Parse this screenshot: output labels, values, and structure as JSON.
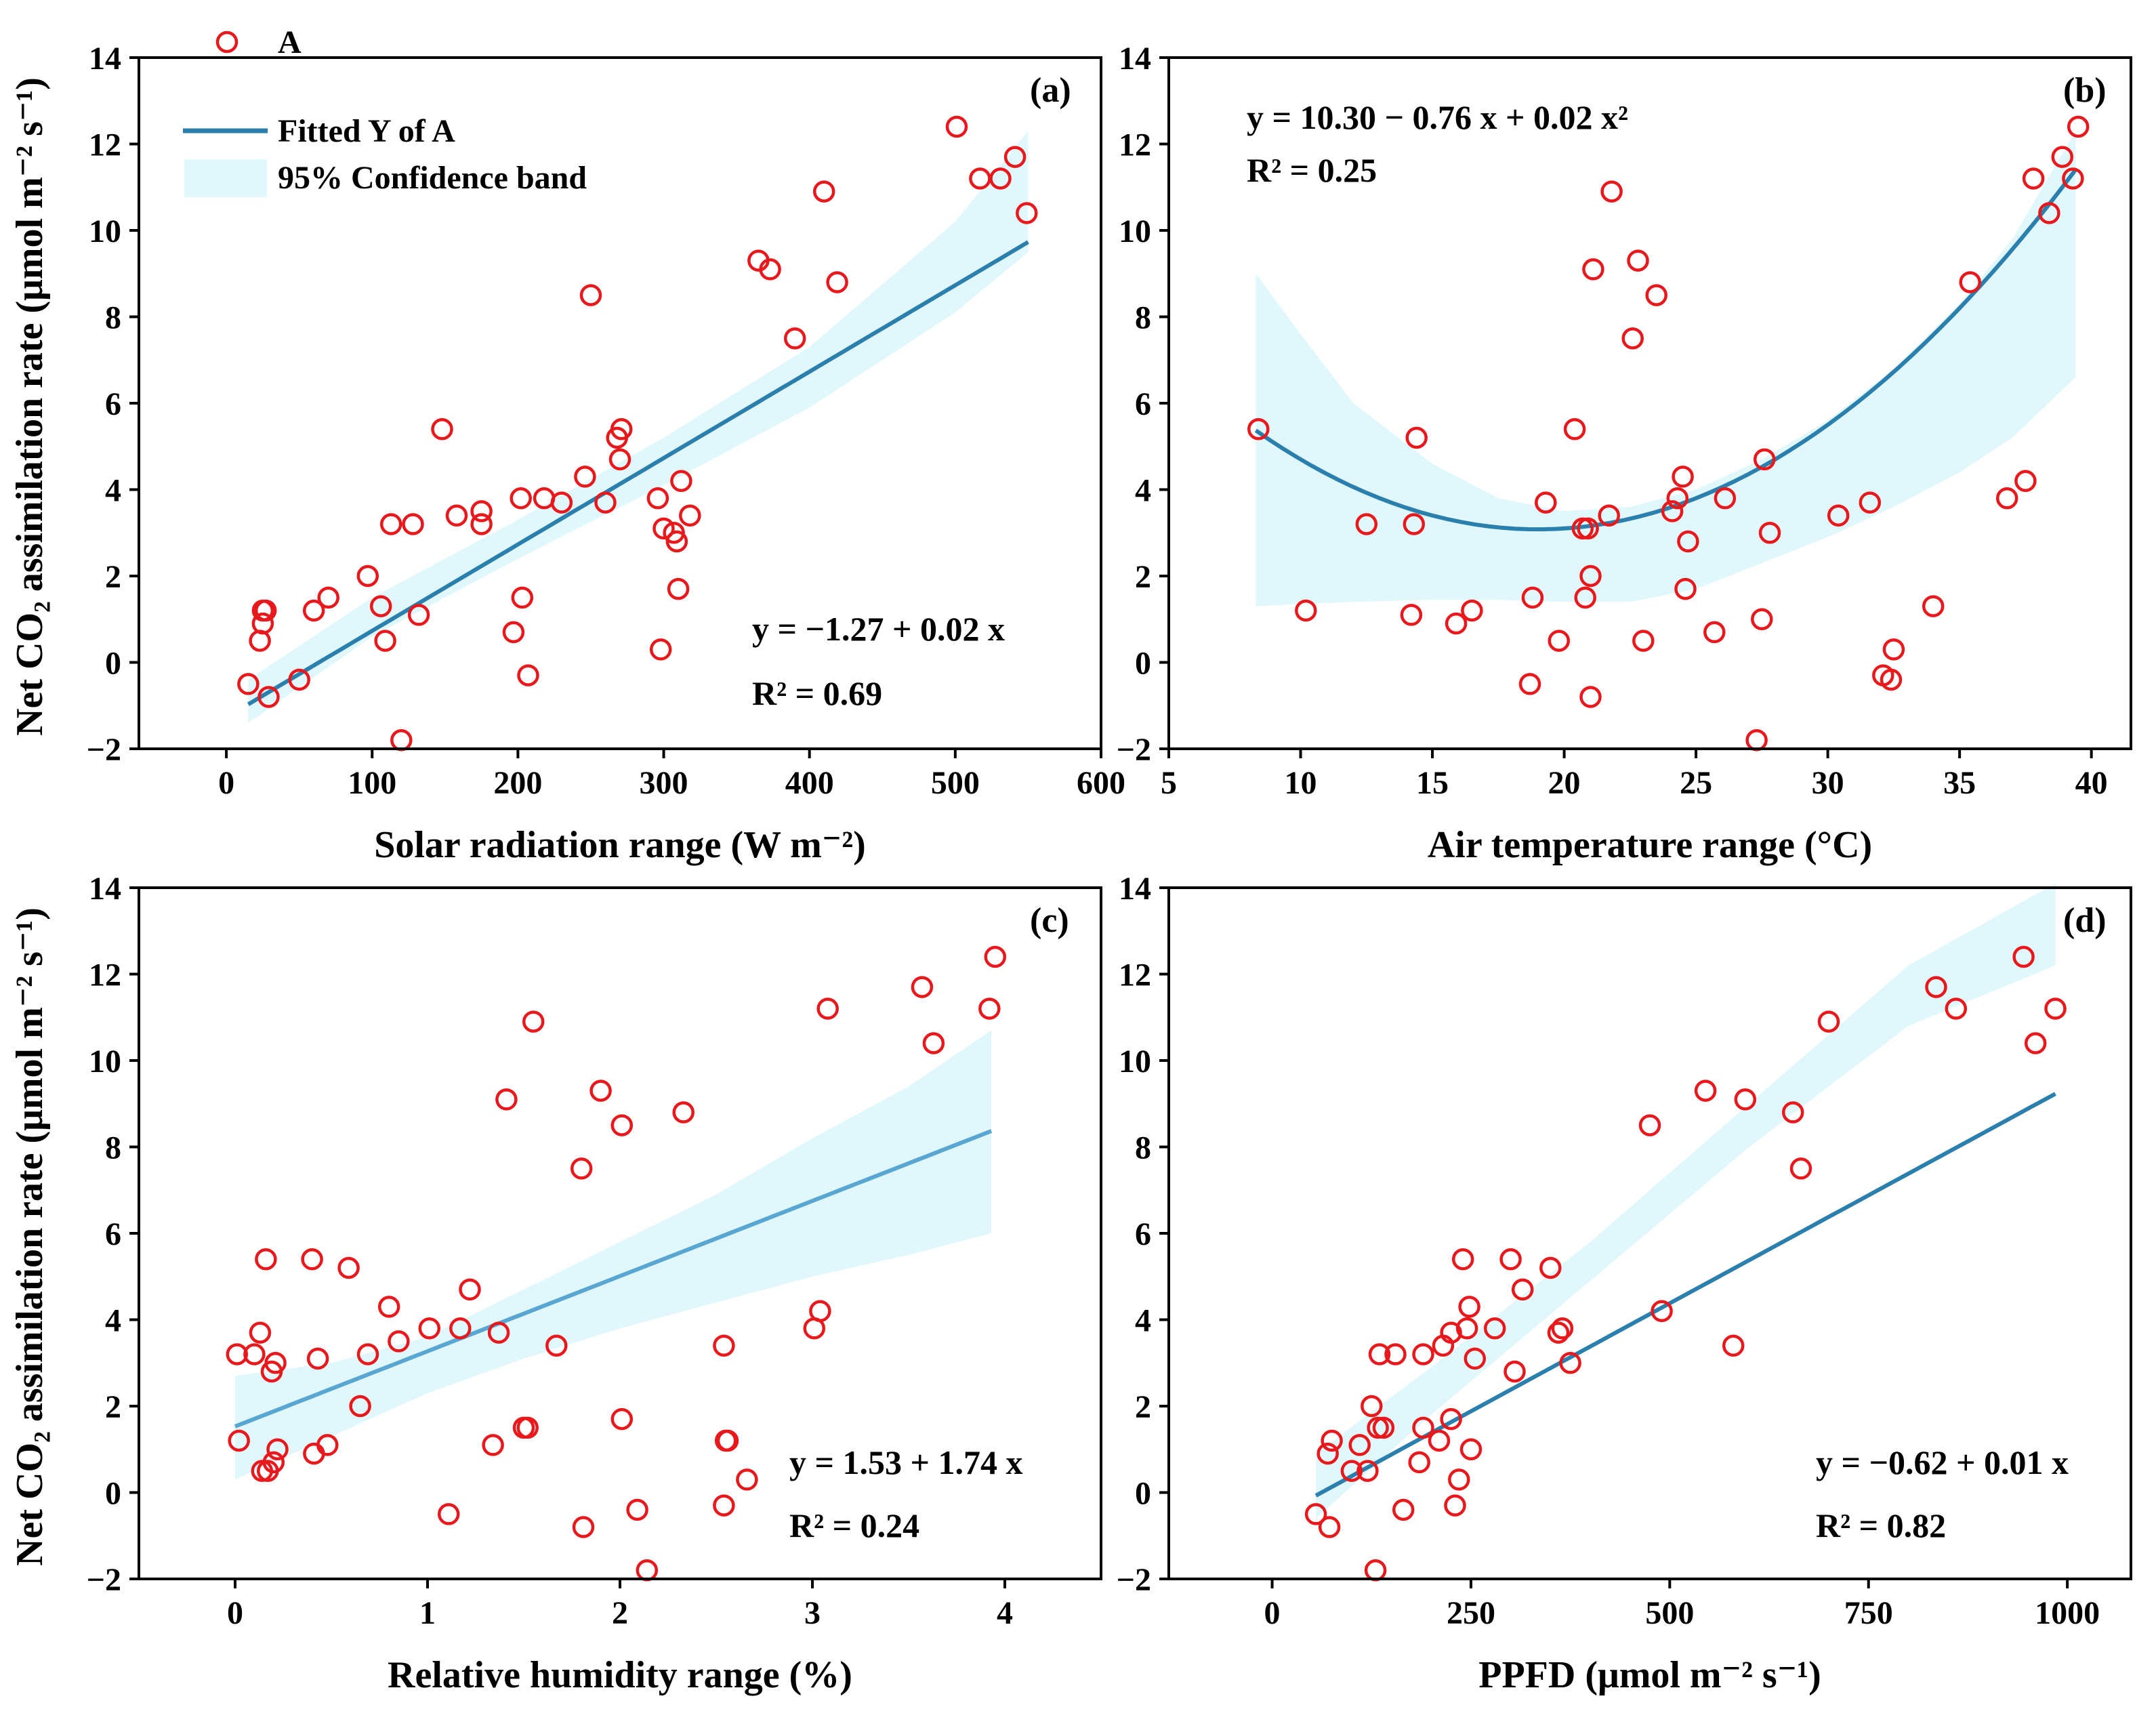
{
  "colors": {
    "points": "#e8191c",
    "fit_dark": "#2a7fad",
    "fit_light": "#58a6d1",
    "band": "#e0f7fb",
    "axis": "#000000"
  },
  "legend": {
    "points_label": "A",
    "fit_label": "Fitted Y of A",
    "band_label": "95% Confidence band"
  },
  "ylabel_main": "Net CO₂ assimilation rate (μmol m⁻² s⁻¹)",
  "chart_data": [
    {
      "type": "scatter",
      "panel": "(a)",
      "xlabel": "Solar radiation range (W m⁻²)",
      "xlim": [
        -60,
        600
      ],
      "ylim": [
        -2,
        14
      ],
      "xticks": [
        0,
        100,
        200,
        300,
        400,
        500,
        600
      ],
      "xtick_labels": [
        "0",
        "100",
        "200",
        "300",
        "400",
        "500",
        "600"
      ],
      "yticks": [
        -2,
        0,
        2,
        4,
        6,
        8,
        10,
        12,
        14
      ],
      "ytick_labels": [
        "−2",
        "0",
        "2",
        "4",
        "6",
        "8",
        "10",
        "12",
        "14"
      ],
      "fit": {
        "model": "linear",
        "coef": [
          -1.27,
          0.02
        ],
        "x_range": [
          15,
          550
        ],
        "equation": "y = −1.27 + 0.02 x",
        "r2": "R² = 0.69"
      },
      "band_x": [
        15,
        100,
        200,
        300,
        400,
        500,
        550
      ],
      "band_lower": [
        -1.4,
        0.6,
        2.4,
        4.1,
        5.9,
        8.1,
        9.5
      ],
      "band_upper": [
        -0.4,
        1.5,
        3.3,
        5.2,
        7.3,
        10.2,
        12.3
      ],
      "x": [
        15,
        23,
        25,
        25,
        27,
        29,
        50,
        60,
        70,
        97,
        106,
        109,
        113,
        128,
        132,
        148,
        158,
        175,
        175,
        197,
        202,
        203,
        207,
        218,
        230,
        246,
        250,
        260,
        268,
        270,
        271,
        296,
        298,
        300,
        307,
        309,
        310,
        312,
        318,
        365,
        373,
        390,
        410,
        419,
        501,
        517,
        531,
        541,
        549,
        120
      ],
      "y": [
        -0.5,
        0.5,
        0.9,
        1.2,
        1.2,
        -0.8,
        -0.4,
        1.2,
        1.5,
        2.0,
        1.3,
        0.5,
        3.2,
        3.2,
        1.1,
        5.4,
        3.4,
        3.5,
        3.2,
        0.7,
        3.8,
        1.5,
        -0.3,
        3.8,
        3.7,
        4.3,
        8.5,
        3.7,
        5.2,
        4.7,
        5.4,
        3.8,
        0.3,
        3.1,
        3.0,
        2.8,
        1.7,
        4.2,
        3.4,
        9.3,
        9.1,
        7.5,
        10.9,
        8.8,
        12.4,
        11.2,
        11.2,
        11.7,
        10.4,
        -1.8
      ]
    },
    {
      "type": "scatter",
      "panel": "(b)",
      "xlabel": "Air temperature range (°C)",
      "xlim": [
        5,
        41.5
      ],
      "ylim": [
        -2,
        14
      ],
      "xticks": [
        5,
        10,
        15,
        20,
        25,
        30,
        35,
        40
      ],
      "xtick_labels": [
        "5",
        "10",
        "15",
        "20",
        "25",
        "30",
        "35",
        "40"
      ],
      "yticks": [
        -2,
        0,
        2,
        4,
        6,
        8,
        10,
        12,
        14
      ],
      "ytick_labels": [
        "−2",
        "0",
        "2",
        "4",
        "6",
        "8",
        "10",
        "12",
        "14"
      ],
      "fit": {
        "model": "quadratic",
        "coef": [
          10.3,
          -0.76,
          0.02
        ],
        "x_range": [
          8.3,
          39.4
        ],
        "equation": "y = 10.30 − 0.76 x + 0.02 x²",
        "r2": "R² = 0.25"
      },
      "band_x": [
        8.3,
        10,
        12,
        15,
        17.5,
        20,
        22.5,
        25,
        27.5,
        30,
        32.5,
        35,
        37,
        39.4
      ],
      "band_lower": [
        1.3,
        1.35,
        1.4,
        1.45,
        1.45,
        1.4,
        1.4,
        1.7,
        2.3,
        2.9,
        3.6,
        4.4,
        5.2,
        6.6
      ],
      "band_upper": [
        9.0,
        7.6,
        6.0,
        4.6,
        3.8,
        3.5,
        3.6,
        4.0,
        4.7,
        5.6,
        6.8,
        8.3,
        9.8,
        12.3
      ],
      "x": [
        8.4,
        10.2,
        12.5,
        14.2,
        14.3,
        14.4,
        15.9,
        16.5,
        18.7,
        18.8,
        19.3,
        19.8,
        20.4,
        20.7,
        20.8,
        20.9,
        21.0,
        21.0,
        21.1,
        21.7,
        21.8,
        22.6,
        22.8,
        23.0,
        23.5,
        24.1,
        24.3,
        24.5,
        24.6,
        24.7,
        25.7,
        26.1,
        27.3,
        27.5,
        27.6,
        27.8,
        30.4,
        31.6,
        32.1,
        32.4,
        32.5,
        34.0,
        35.4,
        36.8,
        37.5,
        37.8,
        38.4,
        38.9,
        39.3,
        39.5
      ],
      "y": [
        5.4,
        1.2,
        3.2,
        1.1,
        3.2,
        5.2,
        0.9,
        1.2,
        -0.5,
        1.5,
        3.7,
        0.5,
        5.4,
        3.1,
        1.5,
        3.1,
        2.0,
        -0.8,
        9.1,
        3.4,
        10.9,
        7.5,
        9.3,
        0.5,
        8.5,
        3.5,
        3.8,
        4.3,
        1.7,
        2.8,
        0.7,
        3.8,
        -1.8,
        1.0,
        4.7,
        3.0,
        3.4,
        3.7,
        -0.3,
        -0.4,
        0.3,
        1.3,
        8.8,
        3.8,
        4.2,
        11.2,
        10.4,
        11.7,
        11.2,
        12.4
      ]
    },
    {
      "type": "scatter",
      "panel": "(c)",
      "xlabel": "Relative humidity range (%)",
      "xlim": [
        -0.5,
        4.5
      ],
      "ylim": [
        -2,
        14
      ],
      "xticks": [
        0,
        1,
        2,
        3,
        4
      ],
      "xtick_labels": [
        "0",
        "1",
        "2",
        "3",
        "4"
      ],
      "yticks": [
        -2,
        0,
        2,
        4,
        6,
        8,
        10,
        12,
        14
      ],
      "ytick_labels": [
        "−2",
        "0",
        "2",
        "4",
        "6",
        "8",
        "10",
        "12",
        "14"
      ],
      "fit": {
        "model": "linear",
        "coef": [
          1.53,
          1.74
        ],
        "x_range": [
          0,
          3.93
        ],
        "equation": "y = 1.53 + 1.74 x",
        "r2": "R² = 0.24"
      },
      "band_x": [
        0,
        0.5,
        1,
        1.5,
        2,
        2.5,
        3,
        3.5,
        3.93
      ],
      "band_lower": [
        0.3,
        1.3,
        2.3,
        3.1,
        3.8,
        4.4,
        5.0,
        5.5,
        6.0
      ],
      "band_upper": [
        2.7,
        3.0,
        3.6,
        4.7,
        5.8,
        6.9,
        8.2,
        9.4,
        10.7
      ],
      "x": [
        0.01,
        0.02,
        0.1,
        0.13,
        0.14,
        0.16,
        0.17,
        0.19,
        0.2,
        0.21,
        0.22,
        0.4,
        0.41,
        0.43,
        0.48,
        0.59,
        0.65,
        0.69,
        0.8,
        0.85,
        1.01,
        1.11,
        1.17,
        1.22,
        1.34,
        1.37,
        1.41,
        1.5,
        1.52,
        1.55,
        1.67,
        1.8,
        1.81,
        1.9,
        2.01,
        2.01,
        2.09,
        2.14,
        2.33,
        2.54,
        2.54,
        2.55,
        2.56,
        2.66,
        3.01,
        3.04,
        3.08,
        3.57,
        3.63,
        3.92,
        3.95
      ],
      "y": [
        3.2,
        1.2,
        3.2,
        3.7,
        0.5,
        5.4,
        0.5,
        2.8,
        0.7,
        3.0,
        1.0,
        5.4,
        0.9,
        3.1,
        1.1,
        5.2,
        2.0,
        3.2,
        4.3,
        3.5,
        3.8,
        -0.5,
        3.8,
        4.7,
        1.1,
        3.7,
        9.1,
        1.5,
        1.5,
        10.9,
        3.4,
        7.5,
        -0.8,
        9.3,
        8.5,
        1.7,
        -0.4,
        -1.8,
        8.8,
        3.4,
        -0.3,
        1.2,
        1.2,
        0.3,
        3.8,
        4.2,
        11.2,
        11.7,
        10.4,
        11.2,
        12.4
      ]
    },
    {
      "type": "scatter",
      "panel": "(d)",
      "xlabel": "PPFD (μmol m⁻² s⁻¹)",
      "xlim": [
        -130,
        1080
      ],
      "ylim": [
        -2,
        14
      ],
      "xticks": [
        0,
        250,
        500,
        750,
        1000
      ],
      "xtick_labels": [
        "0",
        "250",
        "500",
        "750",
        "1000"
      ],
      "yticks": [
        -2,
        0,
        2,
        4,
        6,
        8,
        10,
        12,
        14
      ],
      "ytick_labels": [
        "−2",
        "0",
        "2",
        "4",
        "6",
        "8",
        "10",
        "12",
        "14"
      ],
      "fit": {
        "model": "linear",
        "coef": [
          -0.62,
          0.01
        ],
        "x_range": [
          55,
          985
        ],
        "equation": "y = −0.62 + 0.01 x",
        "r2": "R² = 0.82"
      },
      "band_x": [
        55,
        200,
        400,
        600,
        800,
        985
      ],
      "band_lower": [
        -0.6,
        1.8,
        4.9,
        8.0,
        10.8,
        12.2
      ],
      "band_upper": [
        0.9,
        2.9,
        5.8,
        9.0,
        12.2,
        14.1
      ],
      "x": [
        55,
        70,
        72,
        75,
        100,
        110,
        120,
        125,
        130,
        133,
        135,
        140,
        155,
        165,
        185,
        190,
        190,
        210,
        215,
        225,
        225,
        230,
        235,
        240,
        245,
        248,
        250,
        255,
        280,
        300,
        305,
        315,
        350,
        360,
        365,
        375,
        475,
        490,
        545,
        580,
        595,
        655,
        665,
        700,
        835,
        860,
        945,
        960,
        985
      ],
      "y": [
        -0.5,
        0.9,
        -0.8,
        1.2,
        0.5,
        1.1,
        0.5,
        2.0,
        -1.8,
        1.5,
        3.2,
        1.5,
        3.2,
        -0.4,
        0.7,
        1.5,
        3.2,
        1.2,
        3.4,
        1.7,
        3.7,
        -0.3,
        0.3,
        5.4,
        3.8,
        4.3,
        1.0,
        3.1,
        3.8,
        5.4,
        2.8,
        4.7,
        5.2,
        3.7,
        3.8,
        3.0,
        8.5,
        4.2,
        9.3,
        3.4,
        9.1,
        8.8,
        7.5,
        10.9,
        11.7,
        11.2,
        12.4,
        10.4,
        11.2
      ]
    }
  ]
}
